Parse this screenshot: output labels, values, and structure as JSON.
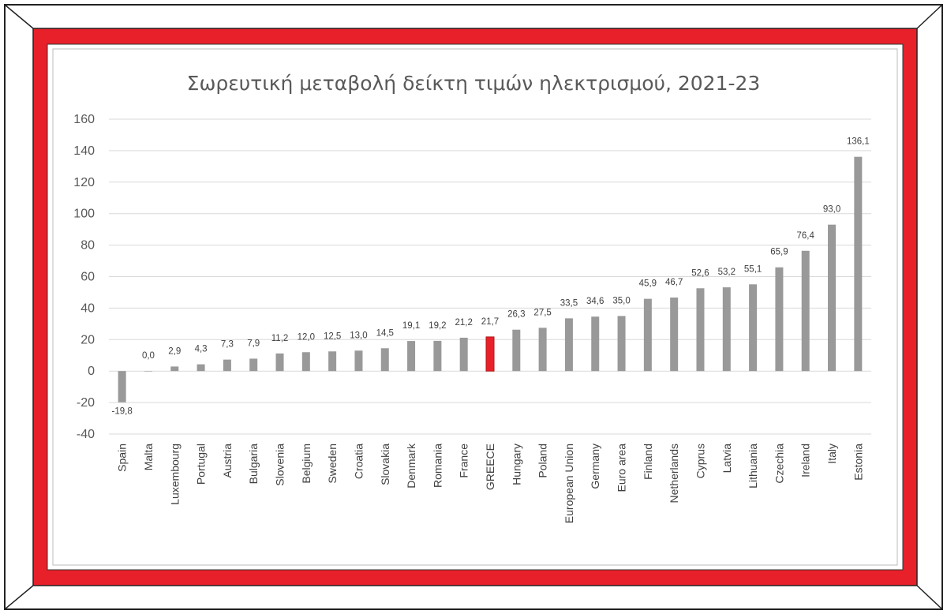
{
  "chart_data": {
    "type": "bar",
    "title": "Σωρευτική μεταβολή δείκτη τιμών ηλεκτρισμού, 2021-23",
    "xlabel": "",
    "ylabel": "",
    "ylim": [
      -40,
      160
    ],
    "yticks": [
      160,
      140,
      120,
      100,
      80,
      60,
      40,
      20,
      0,
      -20,
      -40
    ],
    "grid": true,
    "categories": [
      "Spain",
      "Malta",
      "Luxembourg",
      "Portugal",
      "Austria",
      "Bulgaria",
      "Slovenia",
      "Belgium",
      "Sweden",
      "Croatia",
      "Slovakia",
      "Denmark",
      "Romania",
      "France",
      "GREECE",
      "Hungary",
      "Poland",
      "European Union",
      "Germany",
      "Euro area",
      "Finland",
      "Netherlands",
      "Cyprus",
      "Latvia",
      "Lithuania",
      "Czechia",
      "Ireland",
      "Italy",
      "Estonia"
    ],
    "values": [
      -19.8,
      0.0,
      2.9,
      4.3,
      7.3,
      7.9,
      11.2,
      12.0,
      12.5,
      13.0,
      14.5,
      19.1,
      19.2,
      21.2,
      21.7,
      26.3,
      27.5,
      33.5,
      34.6,
      35.0,
      45.9,
      46.7,
      52.6,
      53.2,
      55.1,
      65.9,
      76.4,
      93.0,
      136.1
    ],
    "data_labels": [
      "-19,8",
      "0,0",
      "2,9",
      "4,3",
      "7,3",
      "7,9",
      "11,2",
      "12,0",
      "12,5",
      "13,0",
      "14,5",
      "19,1",
      "19,2",
      "21,2",
      "21,7",
      "26,3",
      "27,5",
      "33,5",
      "34,6",
      "35,0",
      "45,9",
      "46,7",
      "52,6",
      "53,2",
      "55,1",
      "65,9",
      "76,4",
      "93,0",
      "136,1"
    ],
    "highlight_category": "GREECE",
    "colors": {
      "bar": "#999999",
      "highlight": "#e8202a",
      "grid": "#d9d9d9",
      "frame_red": "#e8202a"
    }
  }
}
